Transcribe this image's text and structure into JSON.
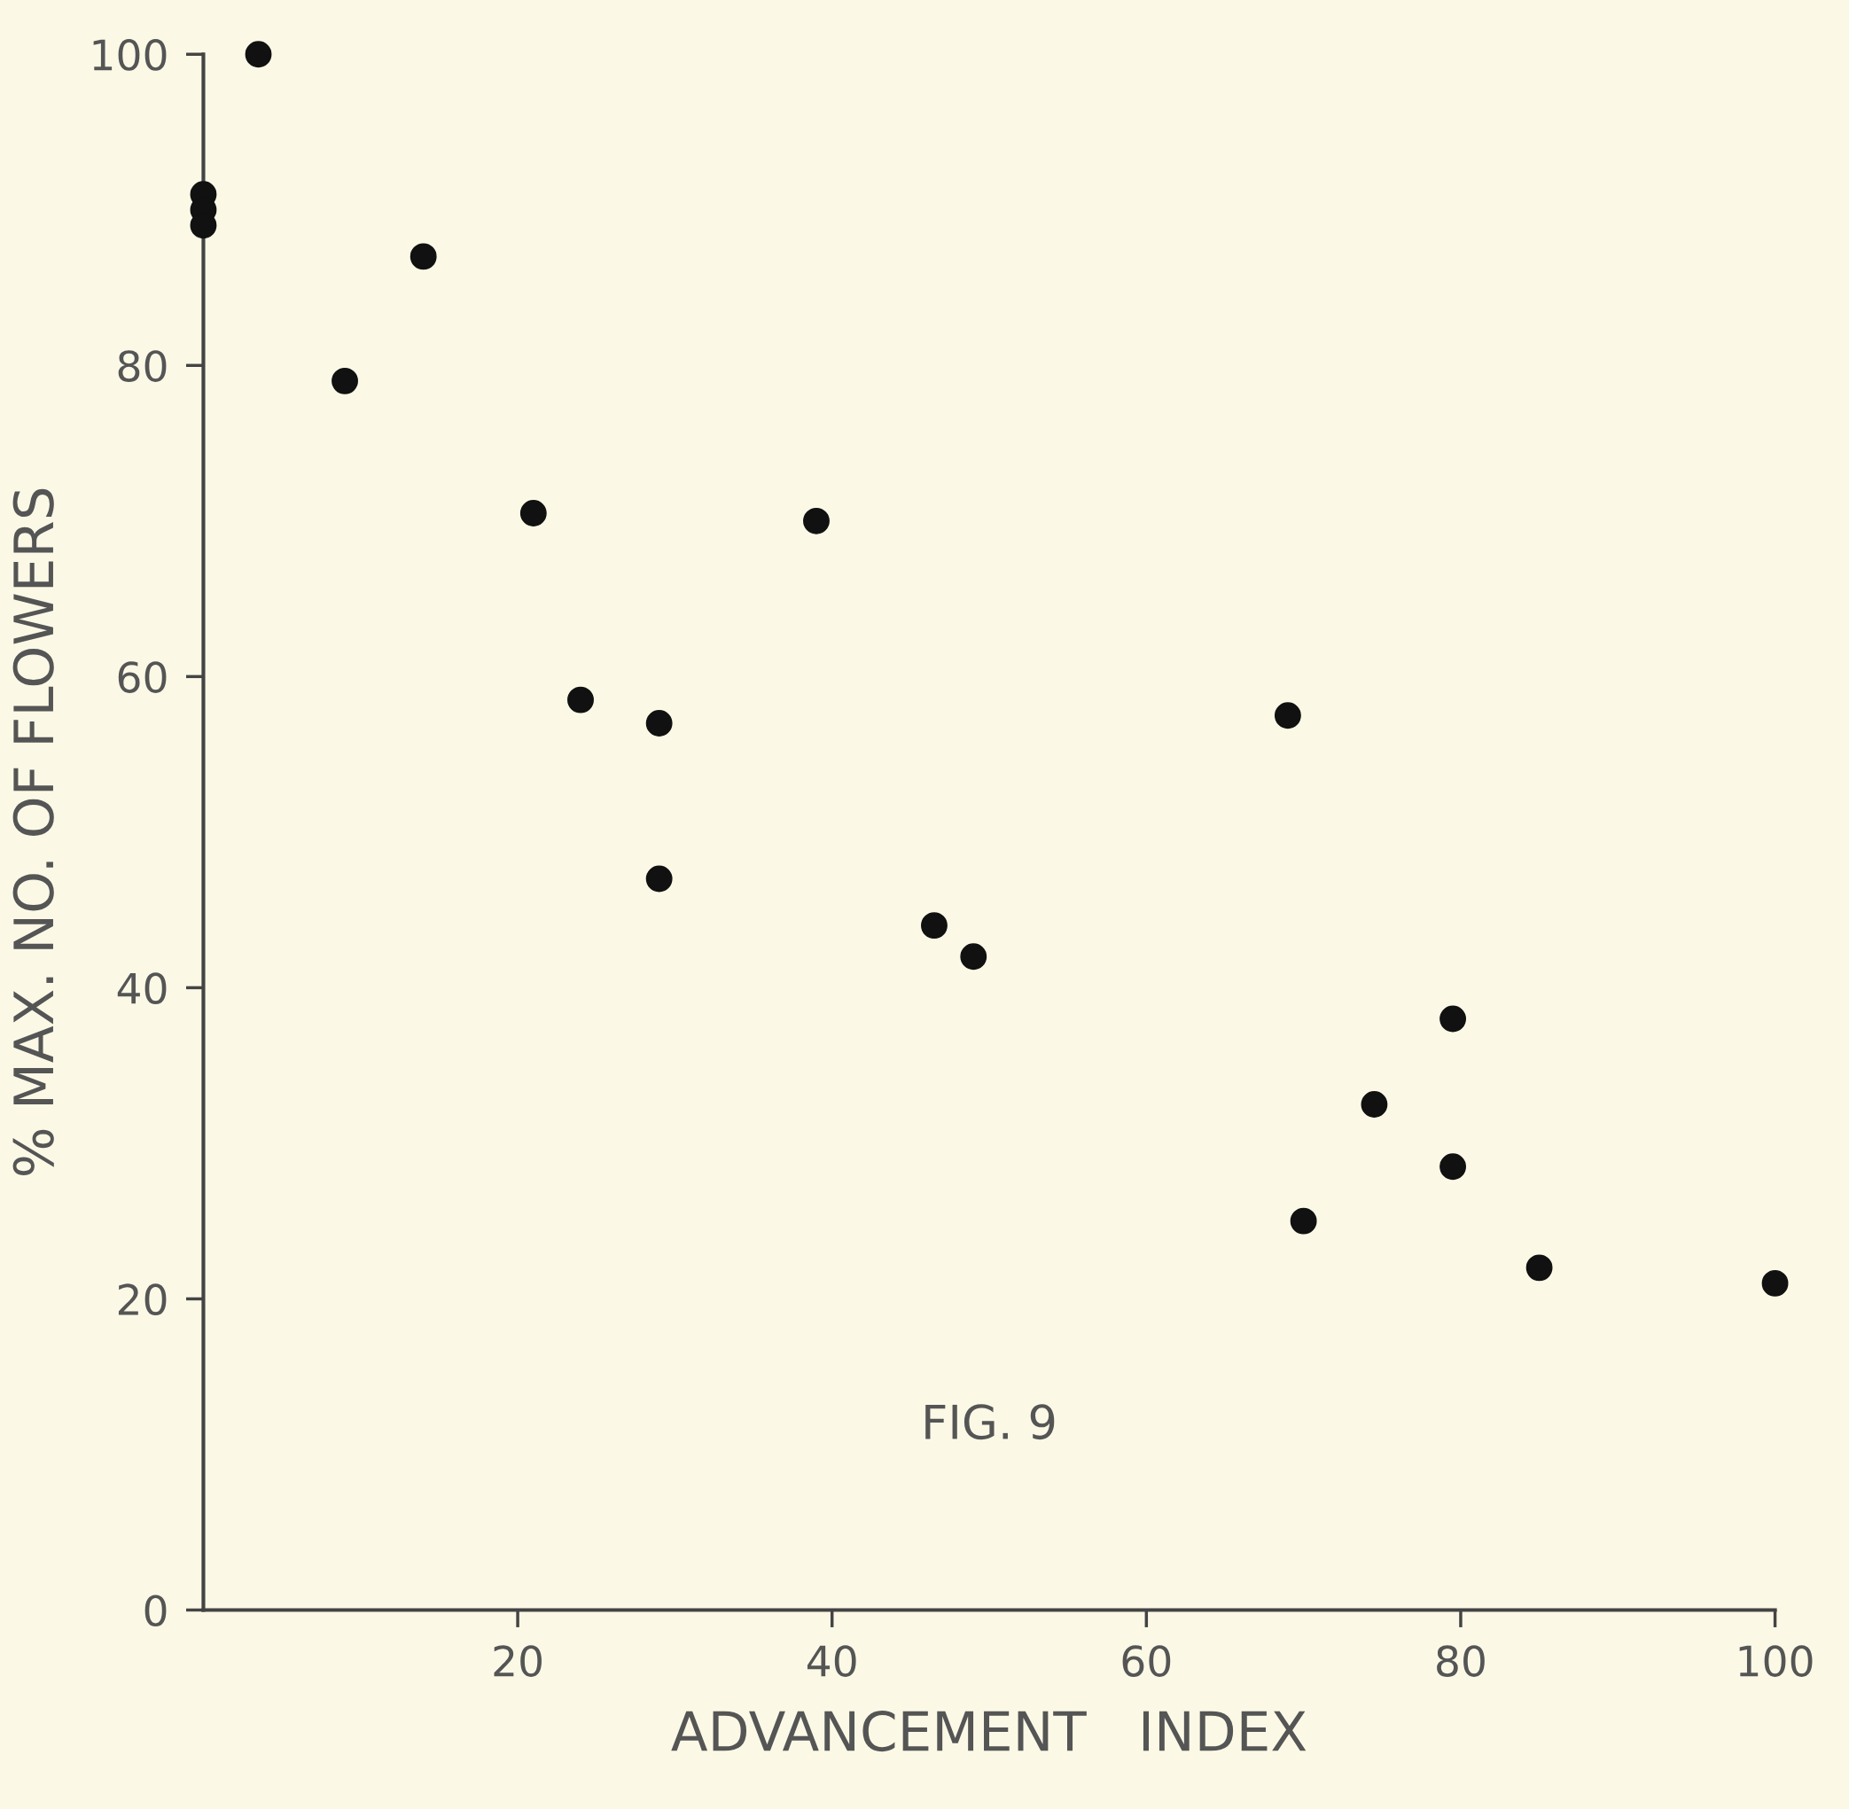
{
  "chart_data": {
    "type": "scatter",
    "xlabel": "ADVANCEMENT   INDEX",
    "ylabel": "% MAX. NO. OF FLOWERS",
    "annotations": [
      "FIG. 9"
    ],
    "series": [
      {
        "color": "#111111",
        "x": [
          3.5,
          0,
          0,
          0,
          14,
          9,
          21,
          39,
          24,
          29,
          29,
          46.5,
          49,
          69,
          79.5,
          74.5,
          79.5,
          70,
          85,
          100
        ],
        "values": [
          100,
          91,
          90,
          89,
          87,
          79,
          70.5,
          70,
          58.5,
          57,
          47,
          44,
          42,
          57.5,
          38,
          32.5,
          28.5,
          25,
          22,
          21
        ]
      }
    ],
    "xlim": [
      0,
      100
    ],
    "ylim": [
      0,
      100
    ],
    "xticks": [
      20,
      40,
      60,
      80,
      100
    ],
    "yticks": [
      0,
      20,
      40,
      60,
      80,
      100
    ],
    "marker": "circle",
    "grid": false,
    "legend": false
  }
}
